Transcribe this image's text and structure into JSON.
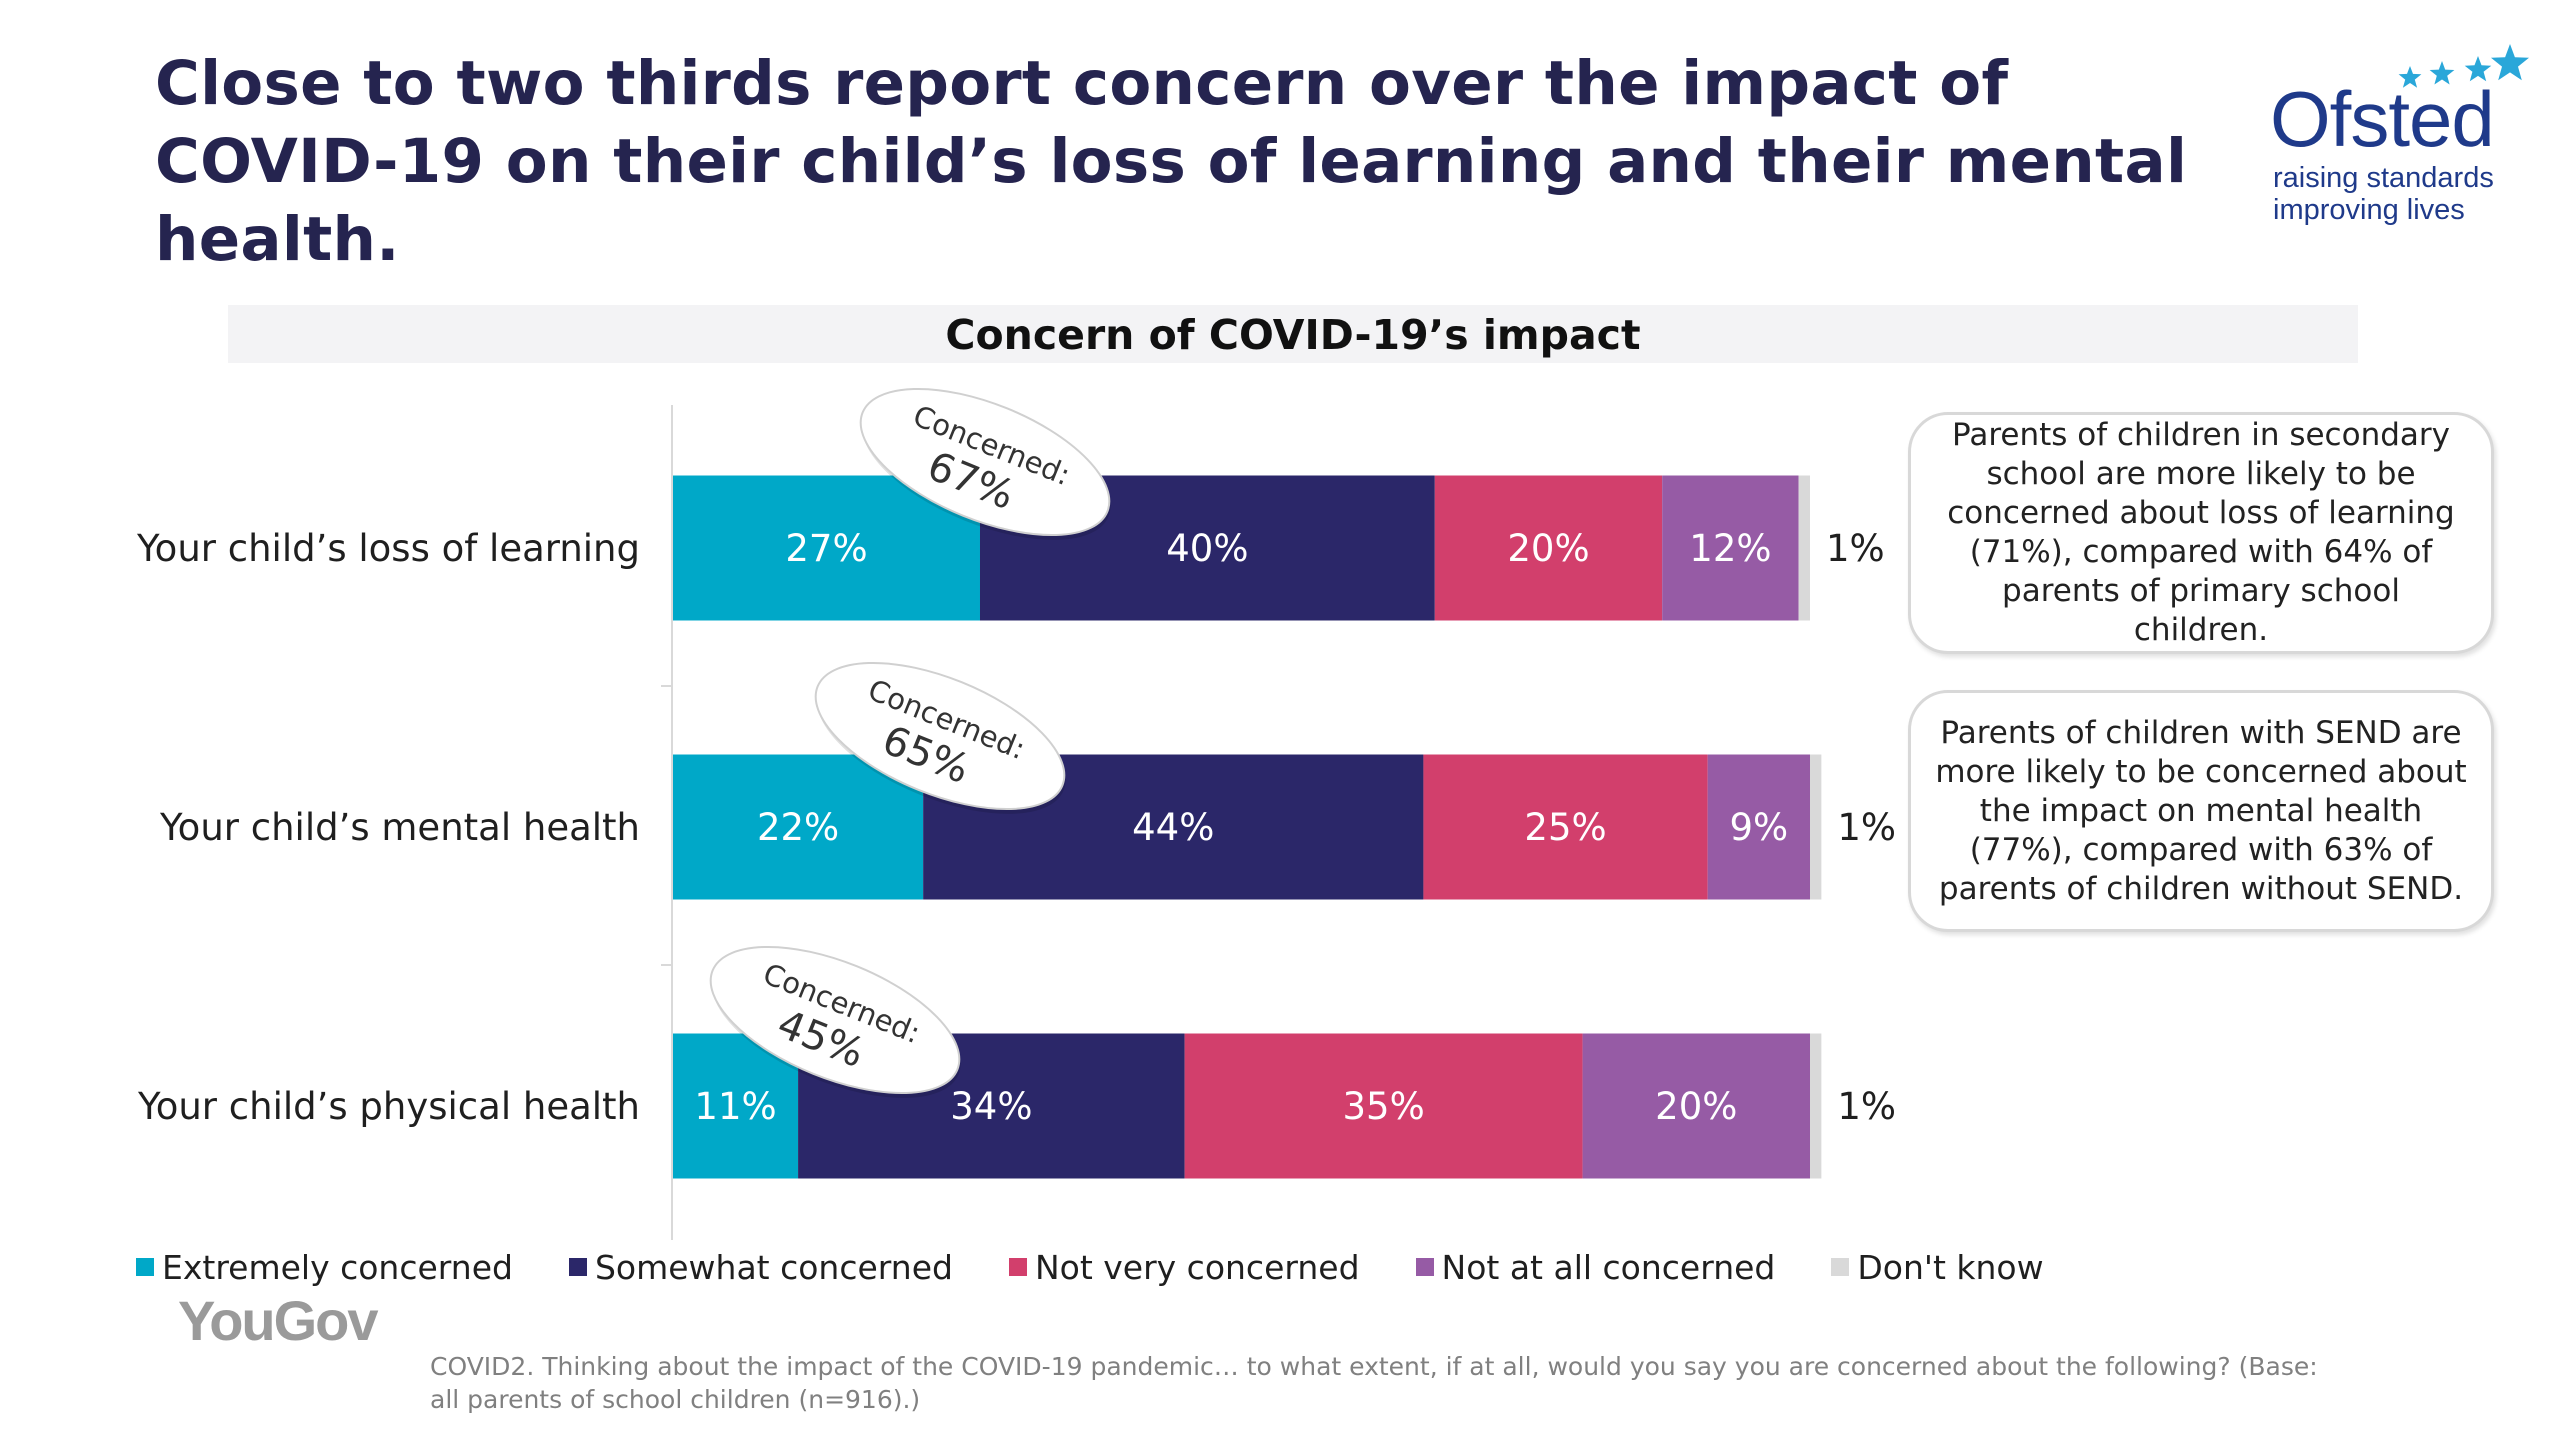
{
  "headline": "Close to two thirds report concern over the impact of COVID-19 on their child’s loss of learning and their mental health.",
  "logo": {
    "name": "Ofsted",
    "tagline": "raising standards\nimproving lives",
    "color": "#1f3a8a",
    "star_color": "#2aa7d9"
  },
  "footer_logo": "YouGov",
  "footnote": "COVID2. Thinking about the impact of the COVID-19 pandemic… to what extent, if at all, would you say you are concerned about the following? (Base: all parents of school children (n=916).)",
  "notes": [
    "Parents of children in secondary school are more likely to be concerned about loss of learning (71%), compared with 64% of parents of primary school children.",
    "Parents of children with SEND are more likely to be concerned about the impact on mental health (77%), compared with 63% of parents of children without SEND."
  ],
  "chart_data": {
    "type": "bar",
    "orientation": "horizontal",
    "stacked": true,
    "title": "Concern of COVID-19’s impact",
    "categories": [
      "Your child’s loss of learning",
      "Your child’s mental health",
      "Your child’s physical health"
    ],
    "series": [
      {
        "name": "Extremely concerned",
        "color": "#00a8c8",
        "values": [
          27,
          22,
          11
        ]
      },
      {
        "name": "Somewhat concerned",
        "color": "#2b2769",
        "values": [
          40,
          44,
          34
        ]
      },
      {
        "name": "Not very concerned",
        "color": "#d23f6c",
        "values": [
          20,
          25,
          35
        ]
      },
      {
        "name": "Not at all concerned",
        "color": "#965ba5",
        "values": [
          12,
          9,
          20
        ]
      },
      {
        "name": "Don't know",
        "color": "#d9d9d9",
        "values": [
          1,
          1,
          1
        ]
      }
    ],
    "concerned_badges": [
      {
        "label": "Concerned:",
        "value": "67%"
      },
      {
        "label": "Concerned:",
        "value": "65%"
      },
      {
        "label": "Concerned:",
        "value": "45%"
      }
    ],
    "value_suffix": "%",
    "legend_position": "bottom",
    "grid": false
  }
}
